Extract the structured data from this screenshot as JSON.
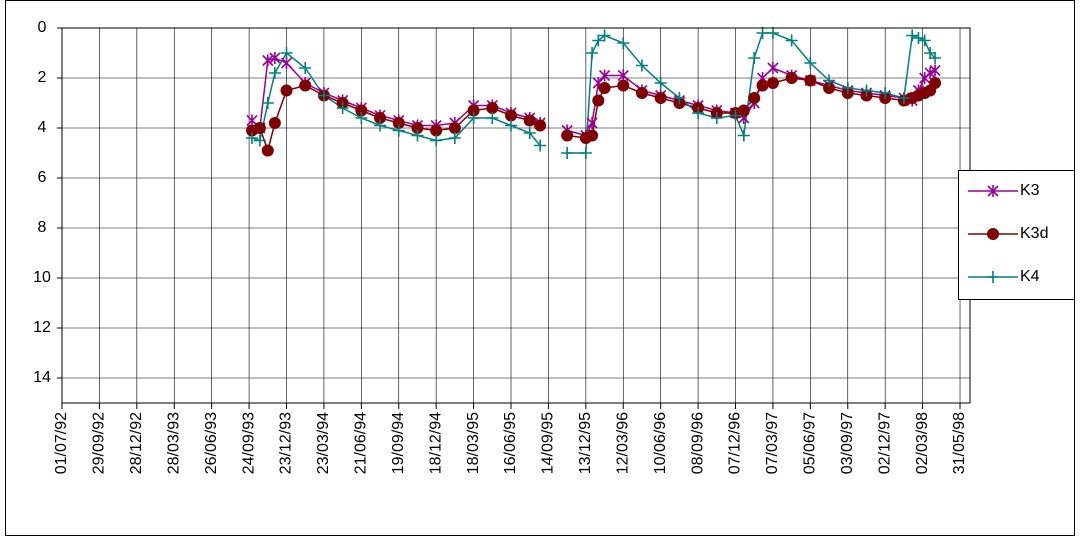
{
  "chart_data": {
    "type": "line",
    "x": [
      "1993-10-01",
      "1993-10-20",
      "1993-11-08",
      "1993-11-25",
      "1993-12-23",
      "1994-02-06",
      "1994-03-23",
      "1994-05-07",
      "1994-06-21",
      "1994-08-05",
      "1994-09-19",
      "1994-11-03",
      "1994-12-18",
      "1995-02-01",
      "1995-03-18",
      "1995-05-02",
      "1995-06-16",
      "1995-07-31",
      "1995-08-25",
      "1995-09-14",
      "1995-10-29",
      "1995-12-13",
      "1995-12-28",
      "1996-01-12",
      "1996-01-27",
      "1996-03-12",
      "1996-04-26",
      "1996-06-10",
      "1996-07-25",
      "1996-09-08",
      "1996-10-23",
      "1996-12-07",
      "1996-12-27",
      "1997-01-21",
      "1997-02-10",
      "1997-03-07",
      "1997-04-21",
      "1997-06-05",
      "1997-07-20",
      "1997-09-03",
      "1997-10-18",
      "1997-12-02",
      "1998-01-16",
      "1998-02-05",
      "1998-02-20",
      "1998-03-07",
      "1998-03-20",
      "1998-04-01"
    ],
    "series": [
      {
        "name": "K3",
        "color": "#990099",
        "marker": "asterisk",
        "values": [
          3.7,
          4.0,
          1.3,
          1.2,
          1.4,
          2.2,
          2.6,
          2.9,
          3.2,
          3.5,
          3.7,
          3.9,
          3.9,
          3.8,
          3.1,
          3.1,
          3.4,
          3.6,
          3.8,
          null,
          4.1,
          4.3,
          3.8,
          2.2,
          1.9,
          1.9,
          2.5,
          2.7,
          2.9,
          3.1,
          3.3,
          3.4,
          3.6,
          3.0,
          2.0,
          1.6,
          1.9,
          2.1,
          2.3,
          2.5,
          2.6,
          2.7,
          2.8,
          2.9,
          2.5,
          2.0,
          1.8,
          1.7
        ]
      },
      {
        "name": "K3d",
        "color": "#800000",
        "marker": "circle",
        "values": [
          4.1,
          4.0,
          4.9,
          3.8,
          2.5,
          2.3,
          2.7,
          3.0,
          3.3,
          3.6,
          3.8,
          4.0,
          4.1,
          4.0,
          3.3,
          3.2,
          3.5,
          3.7,
          3.9,
          null,
          4.3,
          4.4,
          4.3,
          2.9,
          2.4,
          2.3,
          2.6,
          2.8,
          3.0,
          3.2,
          3.4,
          3.4,
          3.3,
          2.8,
          2.3,
          2.2,
          2.0,
          2.1,
          2.4,
          2.6,
          2.7,
          2.8,
          2.9,
          2.8,
          2.7,
          2.6,
          2.5,
          2.2
        ]
      },
      {
        "name": "K4",
        "color": "#008080",
        "marker": "plus",
        "values": [
          4.4,
          4.5,
          3.0,
          1.8,
          1.0,
          1.6,
          2.7,
          3.2,
          3.6,
          3.9,
          4.1,
          4.3,
          4.5,
          4.4,
          3.6,
          3.6,
          3.9,
          4.2,
          4.7,
          null,
          5.0,
          5.0,
          1.0,
          0.5,
          0.3,
          0.6,
          1.5,
          2.2,
          2.8,
          3.4,
          3.6,
          3.5,
          4.3,
          1.2,
          0.2,
          0.2,
          0.5,
          1.4,
          2.1,
          2.4,
          2.5,
          2.6,
          2.8,
          0.3,
          0.4,
          0.5,
          1.0,
          1.2
        ]
      }
    ],
    "xlim": [
      "1992-07-01",
      "1998-06-24"
    ],
    "xticks": [
      {
        "value": "1992-07-01",
        "label": "01/07/92"
      },
      {
        "value": "1992-09-29",
        "label": "29/09/92"
      },
      {
        "value": "1992-12-28",
        "label": "28/12/92"
      },
      {
        "value": "1993-03-28",
        "label": "28/03/93"
      },
      {
        "value": "1993-06-26",
        "label": "26/06/93"
      },
      {
        "value": "1993-09-24",
        "label": "24/09/93"
      },
      {
        "value": "1993-12-23",
        "label": "23/12/93"
      },
      {
        "value": "1994-03-23",
        "label": "23/03/94"
      },
      {
        "value": "1994-06-21",
        "label": "21/06/94"
      },
      {
        "value": "1994-09-19",
        "label": "19/09/94"
      },
      {
        "value": "1994-12-18",
        "label": "18/12/94"
      },
      {
        "value": "1995-03-18",
        "label": "18/03/95"
      },
      {
        "value": "1995-06-16",
        "label": "16/06/95"
      },
      {
        "value": "1995-09-14",
        "label": "14/09/95"
      },
      {
        "value": "1995-12-13",
        "label": "13/12/95"
      },
      {
        "value": "1996-03-12",
        "label": "12/03/96"
      },
      {
        "value": "1996-06-10",
        "label": "10/06/96"
      },
      {
        "value": "1996-09-08",
        "label": "08/09/96"
      },
      {
        "value": "1996-12-07",
        "label": "07/12/96"
      },
      {
        "value": "1997-03-07",
        "label": "07/03/97"
      },
      {
        "value": "1997-06-05",
        "label": "05/06/97"
      },
      {
        "value": "1997-09-03",
        "label": "03/09/97"
      },
      {
        "value": "1997-12-02",
        "label": "02/12/97"
      },
      {
        "value": "1998-03-02",
        "label": "02/03/98"
      },
      {
        "value": "1998-05-31",
        "label": "31/05/98"
      }
    ],
    "ylim": [
      0,
      15
    ],
    "yticks": [
      0,
      2,
      4,
      6,
      8,
      10,
      12,
      14
    ],
    "y_inverted": true,
    "grid": true,
    "legend": "right"
  }
}
